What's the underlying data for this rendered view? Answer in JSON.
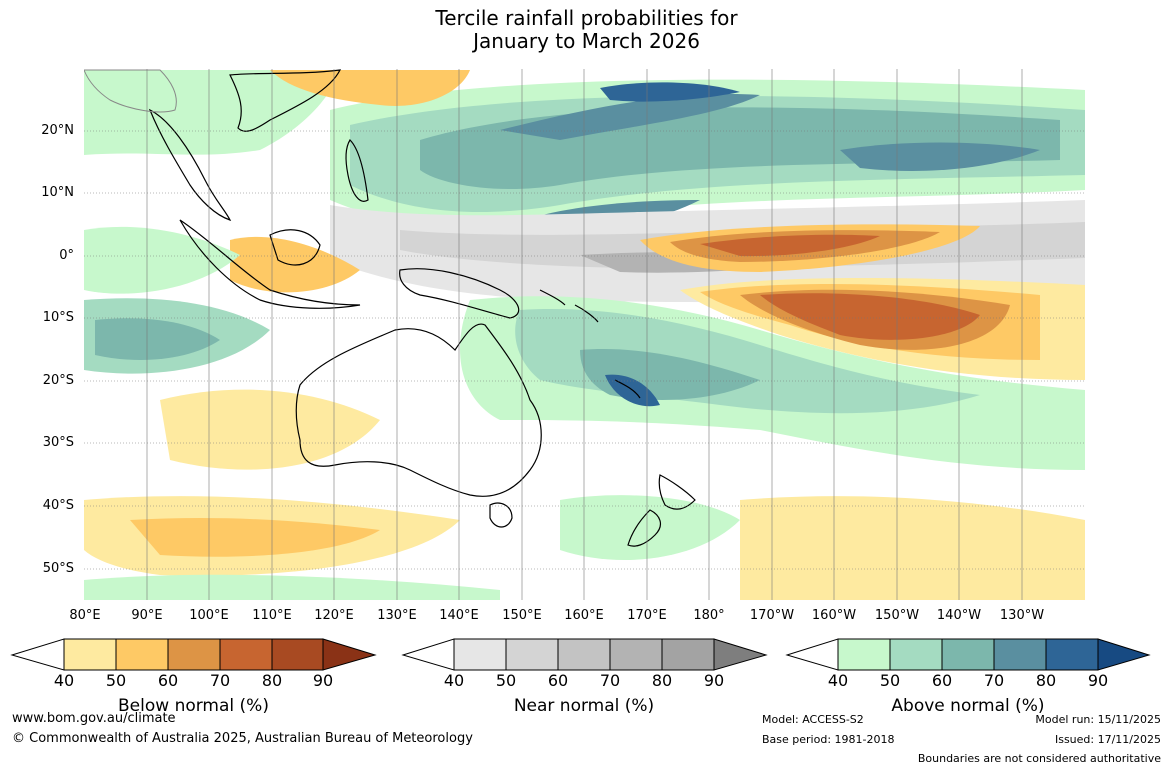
{
  "title": {
    "line1": "Tercile rainfall probabilities for",
    "line2": "January to March 2026"
  },
  "map": {
    "longitude_labels": [
      "80°E",
      "90°E",
      "100°E",
      "110°E",
      "120°E",
      "130°E",
      "140°E",
      "150°E",
      "160°E",
      "170°E",
      "180°",
      "170°W",
      "160°W",
      "150°W",
      "140°W",
      "130°W"
    ],
    "latitude_labels": [
      "20°N",
      "10°N",
      "0°",
      "10°S",
      "20°S",
      "30°S",
      "40°S",
      "50°S"
    ]
  },
  "colorbars": [
    {
      "title": "Below normal (%)",
      "ticks": [
        "40",
        "50",
        "60",
        "70",
        "80",
        "90"
      ],
      "colors": [
        "#ffffff",
        "#feeaa0",
        "#fec965",
        "#dd9445",
        "#c76530",
        "#a84a22",
        "#8a3216"
      ]
    },
    {
      "title": "Near normal (%)",
      "ticks": [
        "40",
        "50",
        "60",
        "70",
        "80",
        "90"
      ],
      "colors": [
        "#ffffff",
        "#e6e6e6",
        "#d4d4d4",
        "#c3c3c3",
        "#b3b3b3",
        "#a3a3a3",
        "#7e7e7e"
      ]
    },
    {
      "title": "Above normal (%)",
      "ticks": [
        "40",
        "50",
        "60",
        "70",
        "80",
        "90"
      ],
      "colors": [
        "#ffffff",
        "#c7f8cc",
        "#a4dbc1",
        "#7cb7ac",
        "#5a8fa0",
        "#2e6596",
        "#174a82"
      ]
    }
  ],
  "footer": {
    "website": "www.bom.gov.au/climate",
    "copyright": "© Commonwealth of Australia 2025, Australian Bureau of Meteorology",
    "model": "Model: ACCESS-S2",
    "base_period": "Base period: 1981-2018",
    "model_run": "Model run: 15/11/2025",
    "issued": "Issued: 17/11/2025",
    "disclaimer": "Boundaries are not considered authoritative"
  }
}
